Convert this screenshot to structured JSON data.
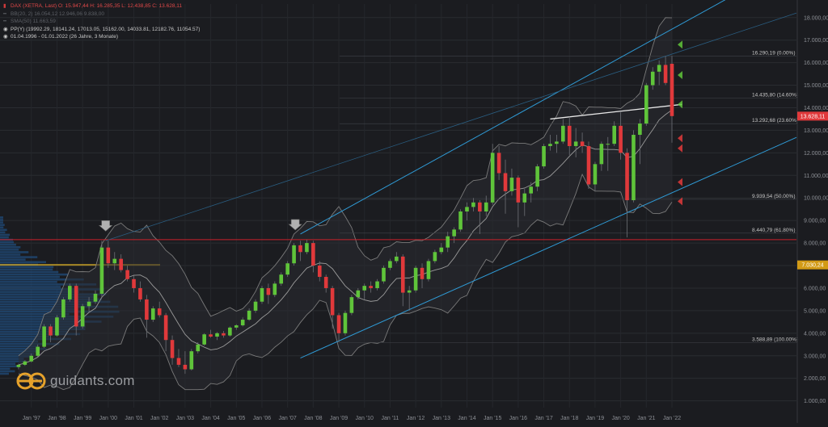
{
  "legend": {
    "line1": "DAX (XETRA, Last)  O: 15.947,44  H: 16.285,35  L: 12.438,85  C: 13.628,11",
    "line2": "BB(20, 2)  16.054,12  12.946,06  9.838,00",
    "line3": "SMA(50)  11.663,59",
    "line4": "PP(Y)  (19992.29, 18141.24, 17013.05, 15162.00, 14033.81, 12182.76, 11054.57)",
    "line5": "01.04.1996 - 01.01.2022  (26 Jahre, 3 Monate)"
  },
  "logo": {
    "text": "guidants.com"
  },
  "colors": {
    "background": "#1b1c20",
    "up": "#5fc43a",
    "down": "#e0393b",
    "channel": "#2f9bd6",
    "bollinger": "#7a7a7a",
    "support": "#c8202a",
    "fib_level": "#c9a227",
    "price_label_bg": "#e0393b",
    "fib_label_bg": "#d29a16"
  },
  "chart_data": {
    "type": "candlestick",
    "title": "DAX (XETRA, Last)",
    "interval": "monthly",
    "ylim": [
      700,
      18600
    ],
    "y_ticks": [
      "1.000,00",
      "2.000,00",
      "3.000,00",
      "4.000,00",
      "5.000,00",
      "6.000,00",
      "7.000,00",
      "8.000,00",
      "9.000,00",
      "10.000,00",
      "11.000,00",
      "12.000,00",
      "13.000,00",
      "14.000,00",
      "15.000,00",
      "16.000,00",
      "17.000,00",
      "18.000,00"
    ],
    "x_labels": [
      "Jan '97",
      "Jan '98",
      "Jan '99",
      "Jan '00",
      "Jan '01",
      "Jan '02",
      "Jan '03",
      "Jan '04",
      "Jan '05",
      "Jan '06",
      "Jan '07",
      "Jan '08",
      "Jan '09",
      "Jan '10",
      "Jan '11",
      "Jan '12",
      "Jan '13",
      "Jan '14",
      "Jan '15",
      "Jan '16",
      "Jan '17",
      "Jan '18",
      "Jan '19",
      "Jan '20",
      "Jan '21",
      "Jan '22"
    ],
    "x_range": [
      1996.25,
      2022.0
    ],
    "last_price": {
      "value": 13628.11,
      "label": "13.628,11"
    },
    "price_marker": {
      "value": 7030.24,
      "label": "7.030,24"
    },
    "fib_levels": [
      {
        "value": 16290.19,
        "label": "16.290,19 (0.00%)"
      },
      {
        "value": 14435.8,
        "label": "14.435,80 (14.60%)"
      },
      {
        "value": 13292.68,
        "label": "13.292,68 (23.60%)"
      },
      {
        "value": 9939.54,
        "label": "9.939,54 (50.00%)"
      },
      {
        "value": 8440.79,
        "label": "8.440,79 (61.80%)"
      },
      {
        "value": 3588.89,
        "label": "3.588,89 (100.00%)"
      }
    ],
    "support_line": 8150,
    "candles": [
      {
        "t": 1996.5,
        "o": 2500,
        "h": 2650,
        "l": 2400,
        "c": 2600
      },
      {
        "t": 1996.75,
        "o": 2600,
        "h": 2800,
        "l": 2550,
        "c": 2750
      },
      {
        "t": 1997.0,
        "o": 2750,
        "h": 3100,
        "l": 2700,
        "c": 3000
      },
      {
        "t": 1997.25,
        "o": 3000,
        "h": 3500,
        "l": 2950,
        "c": 3400
      },
      {
        "t": 1997.5,
        "o": 3400,
        "h": 4400,
        "l": 3350,
        "c": 4300
      },
      {
        "t": 1997.75,
        "o": 4300,
        "h": 4400,
        "l": 3600,
        "c": 3900
      },
      {
        "t": 1998.0,
        "o": 3900,
        "h": 4800,
        "l": 3850,
        "c": 4700
      },
      {
        "t": 1998.25,
        "o": 4700,
        "h": 5600,
        "l": 4600,
        "c": 5500
      },
      {
        "t": 1998.5,
        "o": 5500,
        "h": 6200,
        "l": 5400,
        "c": 6100
      },
      {
        "t": 1998.75,
        "o": 6100,
        "h": 6200,
        "l": 3900,
        "c": 4300
      },
      {
        "t": 1999.0,
        "o": 4300,
        "h": 5300,
        "l": 4200,
        "c": 5200
      },
      {
        "t": 1999.25,
        "o": 5200,
        "h": 5600,
        "l": 4900,
        "c": 5400
      },
      {
        "t": 1999.5,
        "o": 5400,
        "h": 5900,
        "l": 5300,
        "c": 5750
      },
      {
        "t": 1999.75,
        "o": 5750,
        "h": 8100,
        "l": 5600,
        "c": 7800
      },
      {
        "t": 2000.0,
        "o": 7800,
        "h": 8100,
        "l": 6900,
        "c": 7100
      },
      {
        "t": 2000.25,
        "o": 7100,
        "h": 7600,
        "l": 6800,
        "c": 7300
      },
      {
        "t": 2000.5,
        "o": 7300,
        "h": 7500,
        "l": 6700,
        "c": 6800
      },
      {
        "t": 2000.75,
        "o": 6800,
        "h": 7000,
        "l": 6300,
        "c": 6400
      },
      {
        "t": 2001.0,
        "o": 6400,
        "h": 6600,
        "l": 5800,
        "c": 6000
      },
      {
        "t": 2001.25,
        "o": 6000,
        "h": 6300,
        "l": 5400,
        "c": 5500
      },
      {
        "t": 2001.5,
        "o": 5500,
        "h": 5700,
        "l": 3800,
        "c": 4600
      },
      {
        "t": 2001.75,
        "o": 4600,
        "h": 5200,
        "l": 4500,
        "c": 5100
      },
      {
        "t": 2002.0,
        "o": 5100,
        "h": 5400,
        "l": 4700,
        "c": 4800
      },
      {
        "t": 2002.25,
        "o": 4800,
        "h": 4900,
        "l": 3200,
        "c": 3700
      },
      {
        "t": 2002.5,
        "o": 3700,
        "h": 3900,
        "l": 2600,
        "c": 2900
      },
      {
        "t": 2002.75,
        "o": 2900,
        "h": 3300,
        "l": 2500,
        "c": 2600
      },
      {
        "t": 2003.0,
        "o": 2600,
        "h": 3200,
        "l": 2200,
        "c": 2400
      },
      {
        "t": 2003.25,
        "o": 2400,
        "h": 3300,
        "l": 2350,
        "c": 3200
      },
      {
        "t": 2003.5,
        "o": 3200,
        "h": 3600,
        "l": 3100,
        "c": 3500
      },
      {
        "t": 2003.75,
        "o": 3500,
        "h": 4000,
        "l": 3450,
        "c": 3950
      },
      {
        "t": 2004.0,
        "o": 3950,
        "h": 4150,
        "l": 3800,
        "c": 3850
      },
      {
        "t": 2004.25,
        "o": 3850,
        "h": 4050,
        "l": 3700,
        "c": 4000
      },
      {
        "t": 2004.5,
        "o": 4000,
        "h": 4100,
        "l": 3800,
        "c": 3900
      },
      {
        "t": 2004.75,
        "o": 3900,
        "h": 4300,
        "l": 3850,
        "c": 4250
      },
      {
        "t": 2005.0,
        "o": 4250,
        "h": 4400,
        "l": 4150,
        "c": 4350
      },
      {
        "t": 2005.25,
        "o": 4350,
        "h": 4700,
        "l": 4300,
        "c": 4600
      },
      {
        "t": 2005.5,
        "o": 4600,
        "h": 5100,
        "l": 4550,
        "c": 5000
      },
      {
        "t": 2005.75,
        "o": 5000,
        "h": 5500,
        "l": 4900,
        "c": 5400
      },
      {
        "t": 2006.0,
        "o": 5400,
        "h": 6100,
        "l": 5300,
        "c": 6000
      },
      {
        "t": 2006.25,
        "o": 6000,
        "h": 6200,
        "l": 5300,
        "c": 5700
      },
      {
        "t": 2006.5,
        "o": 5700,
        "h": 6300,
        "l": 5600,
        "c": 6200
      },
      {
        "t": 2006.75,
        "o": 6200,
        "h": 6700,
        "l": 6100,
        "c": 6600
      },
      {
        "t": 2007.0,
        "o": 6600,
        "h": 7200,
        "l": 6500,
        "c": 7100
      },
      {
        "t": 2007.25,
        "o": 7100,
        "h": 8000,
        "l": 7000,
        "c": 7900
      },
      {
        "t": 2007.5,
        "o": 7900,
        "h": 8100,
        "l": 7200,
        "c": 7600
      },
      {
        "t": 2007.75,
        "o": 7600,
        "h": 8150,
        "l": 7500,
        "c": 8000
      },
      {
        "t": 2008.0,
        "o": 8000,
        "h": 8100,
        "l": 6700,
        "c": 7000
      },
      {
        "t": 2008.25,
        "o": 7000,
        "h": 7200,
        "l": 6300,
        "c": 6500
      },
      {
        "t": 2008.5,
        "o": 6500,
        "h": 6600,
        "l": 5800,
        "c": 6000
      },
      {
        "t": 2008.75,
        "o": 6000,
        "h": 6100,
        "l": 4200,
        "c": 4800
      },
      {
        "t": 2009.0,
        "o": 4800,
        "h": 4900,
        "l": 3600,
        "c": 4000
      },
      {
        "t": 2009.25,
        "o": 4000,
        "h": 5000,
        "l": 3900,
        "c": 4900
      },
      {
        "t": 2009.5,
        "o": 4900,
        "h": 5700,
        "l": 4800,
        "c": 5600
      },
      {
        "t": 2009.75,
        "o": 5600,
        "h": 6000,
        "l": 5500,
        "c": 5900
      },
      {
        "t": 2010.0,
        "o": 5900,
        "h": 6200,
        "l": 5500,
        "c": 6100
      },
      {
        "t": 2010.25,
        "o": 6100,
        "h": 6300,
        "l": 5800,
        "c": 6000
      },
      {
        "t": 2010.5,
        "o": 6000,
        "h": 6400,
        "l": 5900,
        "c": 6300
      },
      {
        "t": 2010.75,
        "o": 6300,
        "h": 7000,
        "l": 6200,
        "c": 6900
      },
      {
        "t": 2011.0,
        "o": 6900,
        "h": 7300,
        "l": 6800,
        "c": 7200
      },
      {
        "t": 2011.25,
        "o": 7200,
        "h": 7600,
        "l": 7100,
        "c": 7400
      },
      {
        "t": 2011.5,
        "o": 7400,
        "h": 7500,
        "l": 5200,
        "c": 5800
      },
      {
        "t": 2011.75,
        "o": 5800,
        "h": 6100,
        "l": 5000,
        "c": 5900
      },
      {
        "t": 2012.0,
        "o": 5900,
        "h": 7000,
        "l": 5800,
        "c": 6900
      },
      {
        "t": 2012.25,
        "o": 6900,
        "h": 7100,
        "l": 6000,
        "c": 6400
      },
      {
        "t": 2012.5,
        "o": 6400,
        "h": 7300,
        "l": 6300,
        "c": 7200
      },
      {
        "t": 2012.75,
        "o": 7200,
        "h": 7700,
        "l": 7100,
        "c": 7600
      },
      {
        "t": 2013.0,
        "o": 7600,
        "h": 8000,
        "l": 7500,
        "c": 7800
      },
      {
        "t": 2013.25,
        "o": 7800,
        "h": 8500,
        "l": 7600,
        "c": 8300
      },
      {
        "t": 2013.5,
        "o": 8300,
        "h": 8700,
        "l": 8000,
        "c": 8600
      },
      {
        "t": 2013.75,
        "o": 8600,
        "h": 9500,
        "l": 8500,
        "c": 9400
      },
      {
        "t": 2014.0,
        "o": 9400,
        "h": 9800,
        "l": 9000,
        "c": 9600
      },
      {
        "t": 2014.25,
        "o": 9600,
        "h": 10000,
        "l": 9400,
        "c": 9800
      },
      {
        "t": 2014.5,
        "o": 9800,
        "h": 9900,
        "l": 8400,
        "c": 9400
      },
      {
        "t": 2014.75,
        "o": 9400,
        "h": 10100,
        "l": 9200,
        "c": 9800
      },
      {
        "t": 2015.0,
        "o": 9800,
        "h": 12400,
        "l": 9700,
        "c": 12000
      },
      {
        "t": 2015.25,
        "o": 12000,
        "h": 12300,
        "l": 10800,
        "c": 11100
      },
      {
        "t": 2015.5,
        "o": 11100,
        "h": 11700,
        "l": 9300,
        "c": 10300
      },
      {
        "t": 2015.75,
        "o": 10300,
        "h": 11300,
        "l": 10100,
        "c": 10900
      },
      {
        "t": 2016.0,
        "o": 10900,
        "h": 11000,
        "l": 8700,
        "c": 9800
      },
      {
        "t": 2016.25,
        "o": 9800,
        "h": 10400,
        "l": 9200,
        "c": 10200
      },
      {
        "t": 2016.5,
        "o": 10200,
        "h": 10700,
        "l": 9800,
        "c": 10500
      },
      {
        "t": 2016.75,
        "o": 10500,
        "h": 11500,
        "l": 10300,
        "c": 11400
      },
      {
        "t": 2017.0,
        "o": 11400,
        "h": 12400,
        "l": 11300,
        "c": 12300
      },
      {
        "t": 2017.25,
        "o": 12300,
        "h": 12800,
        "l": 12100,
        "c": 12400
      },
      {
        "t": 2017.5,
        "o": 12400,
        "h": 12800,
        "l": 12000,
        "c": 12500
      },
      {
        "t": 2017.75,
        "o": 12500,
        "h": 13500,
        "l": 12400,
        "c": 13200
      },
      {
        "t": 2018.0,
        "o": 13200,
        "h": 13600,
        "l": 11900,
        "c": 12300
      },
      {
        "t": 2018.25,
        "o": 12300,
        "h": 13100,
        "l": 11800,
        "c": 12500
      },
      {
        "t": 2018.5,
        "o": 12500,
        "h": 12900,
        "l": 12000,
        "c": 12300
      },
      {
        "t": 2018.75,
        "o": 12300,
        "h": 12500,
        "l": 10400,
        "c": 10600
      },
      {
        "t": 2019.0,
        "o": 10600,
        "h": 11600,
        "l": 10300,
        "c": 11500
      },
      {
        "t": 2019.25,
        "o": 11500,
        "h": 12500,
        "l": 11200,
        "c": 12400
      },
      {
        "t": 2019.5,
        "o": 12400,
        "h": 12700,
        "l": 11200,
        "c": 12400
      },
      {
        "t": 2019.75,
        "o": 12400,
        "h": 13400,
        "l": 12300,
        "c": 13200
      },
      {
        "t": 2020.0,
        "o": 13200,
        "h": 13800,
        "l": 11700,
        "c": 12000
      },
      {
        "t": 2020.25,
        "o": 12000,
        "h": 12200,
        "l": 8250,
        "c": 9900
      },
      {
        "t": 2020.5,
        "o": 9900,
        "h": 13000,
        "l": 9800,
        "c": 12800
      },
      {
        "t": 2020.75,
        "o": 12800,
        "h": 13500,
        "l": 11500,
        "c": 13300
      },
      {
        "t": 2021.0,
        "o": 13300,
        "h": 15100,
        "l": 13200,
        "c": 15000
      },
      {
        "t": 2021.25,
        "o": 15000,
        "h": 15800,
        "l": 14800,
        "c": 15600
      },
      {
        "t": 2021.5,
        "o": 15600,
        "h": 16100,
        "l": 15000,
        "c": 15900
      },
      {
        "t": 2021.75,
        "o": 15900,
        "h": 16300,
        "l": 15000,
        "c": 15100
      },
      {
        "t": 2022.0,
        "o": 15950,
        "h": 16300,
        "l": 12450,
        "c": 13630
      }
    ]
  }
}
